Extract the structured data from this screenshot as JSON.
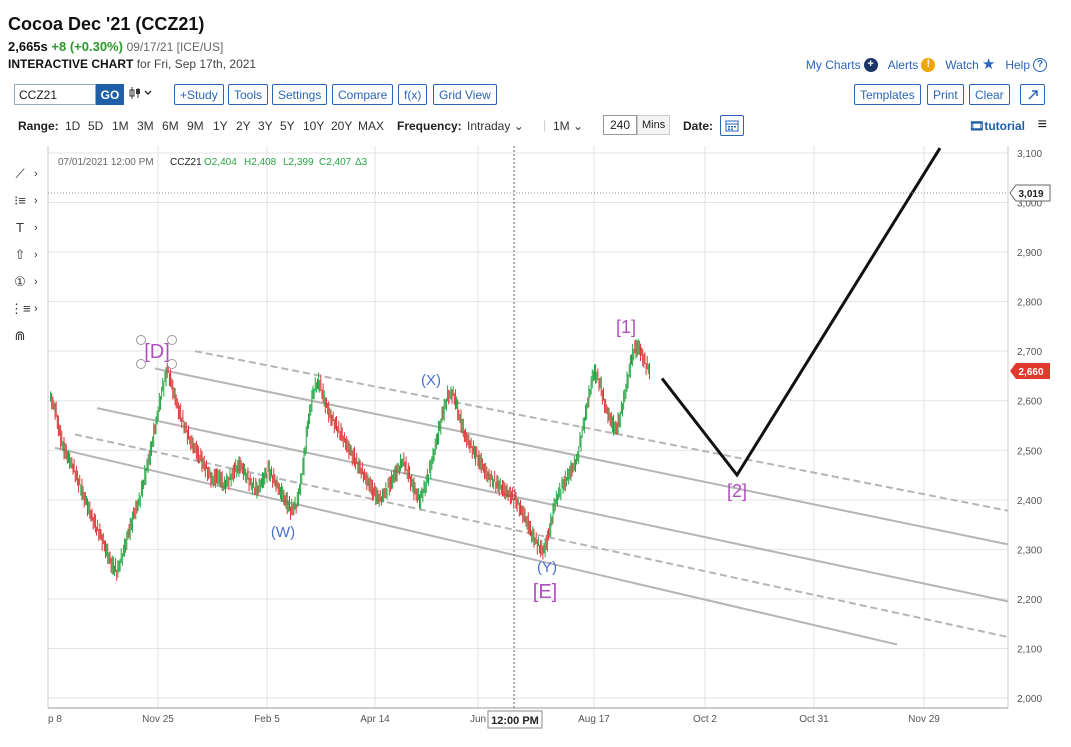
{
  "header": {
    "title": "Cocoa Dec '21 (CCZ21)",
    "price": "2,665s",
    "change": "+8 (+0.30%)",
    "date_exchange": "09/17/21 [ICE/US]",
    "subtitle_bold": "INTERACTIVE CHART",
    "subtitle_rest": "for Fri, Sep 17th, 2021"
  },
  "top_links": {
    "my_charts": "My Charts",
    "alerts": "Alerts",
    "alerts_badge": "!",
    "watch": "Watch",
    "help": "Help",
    "help_badge": "?"
  },
  "toolbar": {
    "symbol_value": "CCZ21",
    "go": "GO",
    "chart_type_icon": "candlestick-icon",
    "study": "+Study",
    "tools": "Tools",
    "settings": "Settings",
    "compare": "Compare",
    "fx": "f(x)",
    "grid_view": "Grid View",
    "templates": "Templates",
    "print": "Print",
    "clear": "Clear"
  },
  "range_bar": {
    "range_label": "Range:",
    "ranges": [
      "1D",
      "5D",
      "1M",
      "3M",
      "6M",
      "9M",
      "1Y",
      "2Y",
      "3Y",
      "5Y",
      "10Y",
      "20Y",
      "MAX"
    ],
    "frequency_label": "Frequency:",
    "frequency_value": "Intraday",
    "period_value": "1M",
    "mins_value": "240",
    "mins_label": "Mins",
    "date_label": "Date:",
    "tutorial": "tutorial"
  },
  "chart_info": {
    "datetime": "07/01/2021 12:00 PM",
    "symbol": "CCZ21",
    "open": "O2,404",
    "high": "H2,408",
    "low": "L2,399",
    "close": "C2,407",
    "delta": "Δ3"
  },
  "crosshair": {
    "time_label": "12:00 PM",
    "price_label": "3,019"
  },
  "last_price_badge": "2,660",
  "colors": {
    "up": "#27a644",
    "down": "#d33",
    "wave_purple": "#b04ec0",
    "wave_blue": "#4a6fc8",
    "badge_red": "#e03a2e",
    "link_blue": "#2a65b8"
  },
  "chart_data": {
    "type": "line",
    "y_axis_ticks": [
      "3,100",
      "3,000",
      "2,900",
      "2,800",
      "2,700",
      "2,600",
      "2,500",
      "2,400",
      "2,300",
      "2,200",
      "2,100",
      "2,000"
    ],
    "ylim": [
      2000,
      3100
    ],
    "x_axis_ticks": [
      "p 8",
      "Nov 25",
      "Feb 5",
      "Apr 14",
      "Jun",
      "Aug 17",
      "Oct 2",
      "Oct 31",
      "Nov 29"
    ],
    "price_series": [
      2610,
      2580,
      2520,
      2490,
      2470,
      2440,
      2410,
      2380,
      2350,
      2330,
      2300,
      2270,
      2255,
      2290,
      2330,
      2370,
      2400,
      2450,
      2500,
      2560,
      2620,
      2665,
      2620,
      2580,
      2550,
      2520,
      2500,
      2480,
      2460,
      2440,
      2450,
      2430,
      2440,
      2460,
      2470,
      2450,
      2430,
      2420,
      2440,
      2460,
      2440,
      2420,
      2400,
      2380,
      2390,
      2450,
      2550,
      2620,
      2640,
      2600,
      2570,
      2550,
      2530,
      2510,
      2490,
      2470,
      2450,
      2430,
      2410,
      2400,
      2420,
      2440,
      2460,
      2480,
      2450,
      2420,
      2400,
      2430,
      2470,
      2520,
      2570,
      2610,
      2615,
      2570,
      2530,
      2510,
      2490,
      2470,
      2450,
      2440,
      2430,
      2420,
      2410,
      2400,
      2380,
      2360,
      2330,
      2310,
      2295,
      2330,
      2390,
      2420,
      2440,
      2460,
      2480,
      2540,
      2600,
      2660,
      2640,
      2590,
      2560,
      2540,
      2580,
      2640,
      2700,
      2710,
      2680,
      2660
    ],
    "projection": [
      {
        "label": "start",
        "y": 2645
      },
      {
        "label": "[2]",
        "y": 2450
      },
      {
        "label": "end",
        "y": 3110
      }
    ],
    "wave_labels": [
      {
        "text": "[D]",
        "group": "purple"
      },
      {
        "text": "(W)",
        "group": "blue"
      },
      {
        "text": "(X)",
        "group": "blue"
      },
      {
        "text": "(Y)",
        "group": "blue"
      },
      {
        "text": "[E]",
        "group": "purple"
      },
      {
        "text": "[1]",
        "group": "purple"
      },
      {
        "text": "[2]",
        "group": "purple"
      }
    ]
  }
}
